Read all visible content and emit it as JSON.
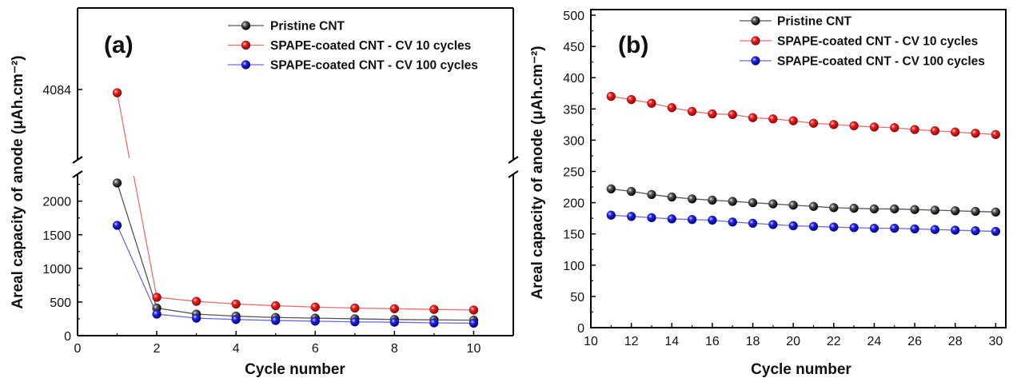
{
  "chart_data": [
    {
      "type": "line",
      "panel_label": "(a)",
      "xlabel": "Cycle number",
      "ylabel": "Areal capacity of anode (μAh.cm⁻²)",
      "xlim": [
        0,
        11
      ],
      "x_ticks": [
        "0",
        "2",
        "4",
        "6",
        "8",
        "10"
      ],
      "ylim_lower": [
        0,
        2400
      ],
      "y_ticks_lower": [
        "0",
        "500",
        "1000",
        "1500",
        "2000"
      ],
      "y_tick_upper": "4084",
      "axis_break": true,
      "x": [
        1,
        2,
        3,
        4,
        5,
        6,
        7,
        8,
        9,
        10
      ],
      "legend_position": "top-right",
      "series": [
        {
          "name": "Pristine CNT",
          "color": "#000000",
          "line_color": "#555555",
          "values": [
            2270,
            410,
            320,
            290,
            270,
            260,
            250,
            240,
            235,
            230
          ]
        },
        {
          "name": "SPAPE-coated CNT - CV 10 cycles",
          "color": "#e8141b",
          "line_color": "#e87070",
          "values": [
            4010,
            570,
            510,
            470,
            445,
            425,
            410,
            400,
            390,
            380
          ]
        },
        {
          "name": "SPAPE-coated CNT - CV 100 cycles",
          "color": "#1a1aee",
          "line_color": "#6a6ae8",
          "values": [
            1640,
            320,
            260,
            240,
            225,
            215,
            205,
            200,
            190,
            185
          ]
        }
      ]
    },
    {
      "type": "line",
      "panel_label": "(b)",
      "xlabel": "Cycle number",
      "ylabel": "Areal capacity of anode (μAh.cm⁻²)",
      "xlim": [
        10,
        30.5
      ],
      "x_ticks": [
        "10",
        "12",
        "14",
        "16",
        "18",
        "20",
        "22",
        "24",
        "26",
        "28",
        "30"
      ],
      "ylim": [
        0,
        500
      ],
      "y_ticks": [
        "0",
        "50",
        "100",
        "150",
        "200",
        "250",
        "300",
        "350",
        "400",
        "450",
        "500"
      ],
      "x": [
        11,
        12,
        13,
        14,
        15,
        16,
        17,
        18,
        19,
        20,
        21,
        22,
        23,
        24,
        25,
        26,
        27,
        28,
        29,
        30
      ],
      "legend_position": "top-center",
      "series": [
        {
          "name": "Pristine CNT",
          "color": "#000000",
          "line_color": "#555555",
          "values": [
            222,
            218,
            213,
            209,
            206,
            204,
            202,
            200,
            198,
            196,
            194,
            192,
            191,
            190,
            190,
            189,
            188,
            187,
            186,
            185
          ]
        },
        {
          "name": "SPAPE-coated CNT - CV 10 cycles",
          "color": "#e8141b",
          "line_color": "#e87070",
          "values": [
            370,
            365,
            359,
            352,
            346,
            342,
            341,
            336,
            334,
            331,
            327,
            325,
            323,
            321,
            320,
            317,
            315,
            313,
            311,
            309
          ]
        },
        {
          "name": "SPAPE-coated CNT - CV 100 cycles",
          "color": "#1a1aee",
          "line_color": "#6a6ae8",
          "values": [
            180,
            178,
            176,
            174,
            173,
            172,
            169,
            167,
            165,
            163,
            162,
            161,
            160,
            159,
            159,
            158,
            157,
            156,
            155,
            154
          ]
        }
      ]
    }
  ]
}
